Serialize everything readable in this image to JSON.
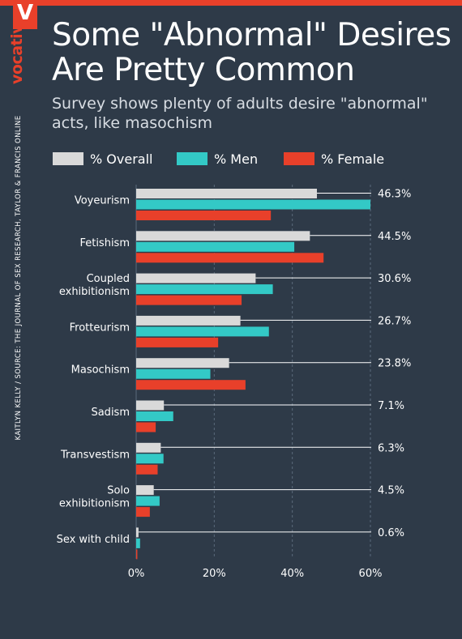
{
  "brand": "vocativ",
  "logo_letter": "V",
  "byline": "KAITLYN KELLY / SOURCE: THE JOURNAL OF SEX RESEARCH, TAYLOR & FRANCIS ONLINE",
  "colors": {
    "background": "#2e3a48",
    "accent": "#e8402a",
    "overall": "#d9d9d9",
    "men": "#33c9c6",
    "female": "#e8402a"
  },
  "chart_data": {
    "type": "bar",
    "orientation": "horizontal",
    "title": "Some \"Abnormal\" Desires Are Pretty Common",
    "subtitle": "Survey shows plenty of adults desire \"abnormal\" acts, like masochism",
    "categories": [
      [
        "Voyeurism"
      ],
      [
        "Fetishism"
      ],
      [
        "Coupled",
        "exhibitionism"
      ],
      [
        "Frotteurism"
      ],
      [
        "Masochism"
      ],
      [
        "Sadism"
      ],
      [
        "Transvestism"
      ],
      [
        "Solo",
        "exhibitionism"
      ],
      [
        "Sex with child"
      ]
    ],
    "series": [
      {
        "name": "% Overall",
        "color": "#d9d9d9",
        "values": [
          46.3,
          44.5,
          30.6,
          26.7,
          23.8,
          7.1,
          6.3,
          4.5,
          0.6
        ]
      },
      {
        "name": "% Men",
        "color": "#33c9c6",
        "values": [
          60.0,
          40.5,
          35.0,
          34.0,
          19.0,
          9.5,
          7.0,
          6.0,
          1.0
        ]
      },
      {
        "name": "% Female",
        "color": "#e8402a",
        "values": [
          34.5,
          48.0,
          27.0,
          21.0,
          28.0,
          5.0,
          5.5,
          3.5,
          0.3
        ]
      }
    ],
    "data_labels": [
      "46.3%",
      "44.5%",
      "30.6%",
      "26.7%",
      "23.8%",
      "7.1%",
      "6.3%",
      "4.5%",
      "0.6%"
    ],
    "xticks": [
      "0%",
      "20%",
      "40%",
      "60%"
    ],
    "xtick_values": [
      0,
      20,
      40,
      60
    ],
    "xlim": [
      0,
      60
    ],
    "grid": "vertical dashed",
    "legend": "top"
  }
}
